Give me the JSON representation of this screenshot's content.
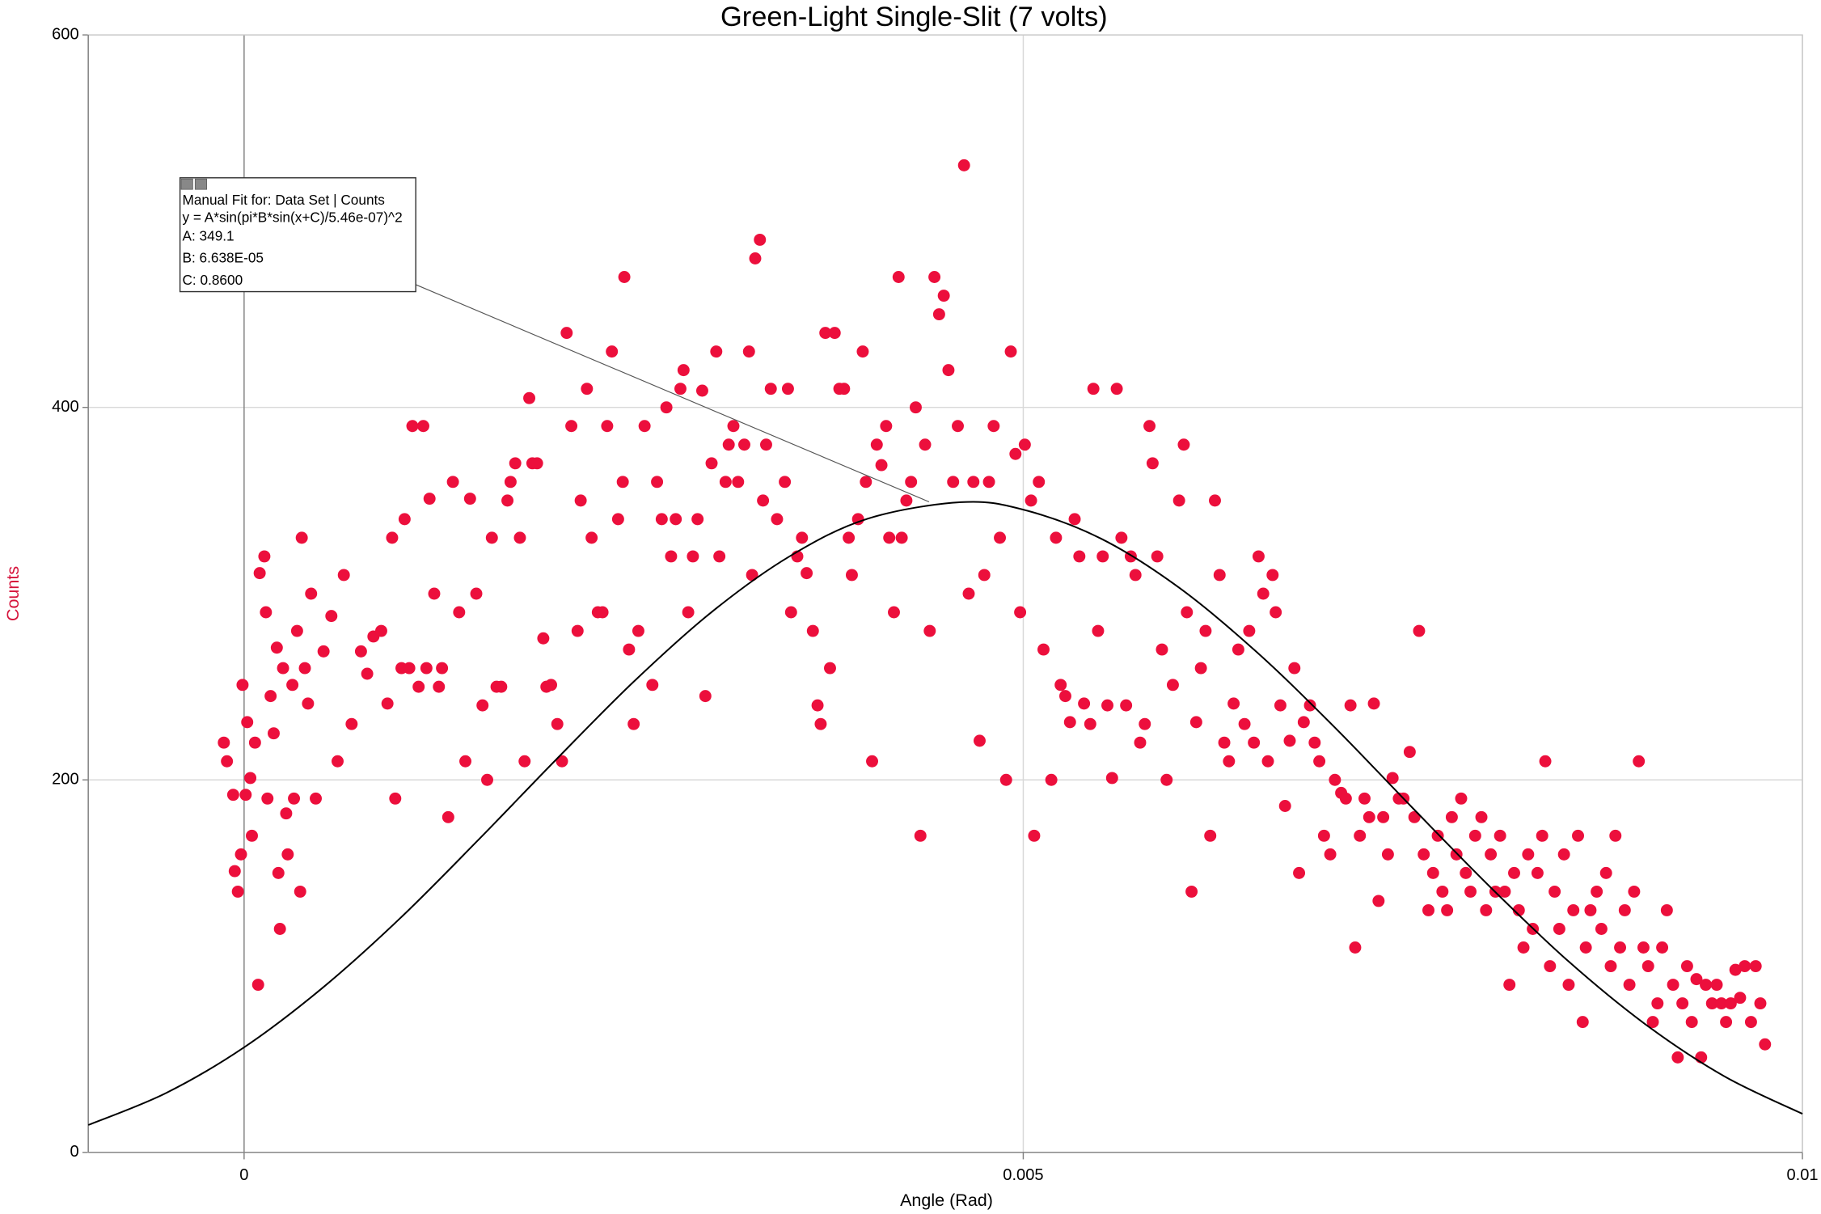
{
  "chart_data": {
    "type": "scatter",
    "title": "Green-Light Single-Slit (7 volts)",
    "x_label": "Angle (Rad)",
    "y_label": "Counts",
    "y_label_color": "#d6143c",
    "xlim": [
      -0.001,
      0.01
    ],
    "ylim": [
      0,
      600
    ],
    "xticks": [
      0,
      0.005,
      0.01
    ],
    "yticks": [
      0,
      200,
      400,
      600
    ],
    "grid": true,
    "series": [
      {
        "type": "scatter",
        "color": "#ec0f3c",
        "x": [
          -0.00013,
          -0.00011,
          -7e-05,
          -6e-05,
          -4e-05,
          -2e-05,
          -1e-05,
          1e-05,
          2e-05,
          4e-05,
          5e-05,
          7e-05,
          9e-05,
          0.0001,
          0.00013,
          0.00014,
          0.00015,
          0.00017,
          0.00019,
          0.00021,
          0.00022,
          0.00023,
          0.00025,
          0.00027,
          0.00028,
          0.00031,
          0.00032,
          0.00034,
          0.00036,
          0.00037,
          0.00039,
          0.00041,
          0.00043,
          0.00046,
          0.00051,
          0.00056,
          0.0006,
          0.00064,
          0.00069,
          0.00075,
          0.00079,
          0.00083,
          0.00088,
          0.00092,
          0.00095,
          0.00097,
          0.00101,
          0.00103,
          0.00106,
          0.00108,
          0.00112,
          0.00115,
          0.00117,
          0.00119,
          0.00122,
          0.00125,
          0.00127,
          0.00131,
          0.00134,
          0.00138,
          0.00142,
          0.00145,
          0.00149,
          0.00153,
          0.00156,
          0.00159,
          0.00162,
          0.00165,
          0.00169,
          0.00171,
          0.00174,
          0.00177,
          0.0018,
          0.00183,
          0.00185,
          0.00188,
          0.00192,
          0.00194,
          0.00197,
          0.00201,
          0.00204,
          0.00207,
          0.0021,
          0.00214,
          0.00216,
          0.0022,
          0.00223,
          0.00227,
          0.0023,
          0.00233,
          0.00236,
          0.0024,
          0.00243,
          0.00244,
          0.00247,
          0.0025,
          0.00253,
          0.00257,
          0.00262,
          0.00265,
          0.00268,
          0.00271,
          0.00274,
          0.00277,
          0.0028,
          0.00282,
          0.00285,
          0.00288,
          0.00291,
          0.00294,
          0.00296,
          0.003,
          0.00303,
          0.00305,
          0.00309,
          0.00311,
          0.00314,
          0.00317,
          0.00321,
          0.00324,
          0.00326,
          0.00328,
          0.00331,
          0.00333,
          0.00335,
          0.00338,
          0.00342,
          0.00347,
          0.00349,
          0.00351,
          0.00355,
          0.00358,
          0.00361,
          0.00365,
          0.00368,
          0.0037,
          0.00373,
          0.00376,
          0.00379,
          0.00382,
          0.00385,
          0.00388,
          0.0039,
          0.00394,
          0.00397,
          0.00399,
          0.00403,
          0.00406,
          0.00409,
          0.00412,
          0.00414,
          0.00417,
          0.0042,
          0.00422,
          0.00425,
          0.00428,
          0.00431,
          0.00434,
          0.00437,
          0.0044,
          0.00443,
          0.00446,
          0.00449,
          0.00452,
          0.00455,
          0.00458,
          0.00462,
          0.00465,
          0.00468,
          0.00472,
          0.00475,
          0.00478,
          0.00481,
          0.00485,
          0.00489,
          0.00492,
          0.00495,
          0.00498,
          0.00501,
          0.00505,
          0.00507,
          0.0051,
          0.00513,
          0.00518,
          0.00521,
          0.00524,
          0.00527,
          0.0053,
          0.00533,
          0.00536,
          0.00539,
          0.00543,
          0.00545,
          0.00548,
          0.00551,
          0.00554,
          0.00557,
          0.0056,
          0.00563,
          0.00566,
          0.00569,
          0.00572,
          0.00575,
          0.00578,
          0.00581,
          0.00583,
          0.00586,
          0.00589,
          0.00592,
          0.00596,
          0.006,
          0.00603,
          0.00605,
          0.00608,
          0.00611,
          0.00614,
          0.00617,
          0.0062,
          0.00623,
          0.00626,
          0.00629,
          0.00632,
          0.00635,
          0.00638,
          0.00642,
          0.00645,
          0.00648,
          0.00651,
          0.00654,
          0.00657,
          0.0066,
          0.00662,
          0.00665,
          0.00668,
          0.00671,
          0.00674,
          0.00677,
          0.0068,
          0.00684,
          0.00687,
          0.0069,
          0.00693,
          0.00697,
          0.007,
          0.00704,
          0.00707,
          0.0071,
          0.00713,
          0.00716,
          0.00719,
          0.00722,
          0.00725,
          0.00728,
          0.00731,
          0.00734,
          0.00737,
          0.00741,
          0.00744,
          0.00748,
          0.00751,
          0.00754,
          0.00757,
          0.0076,
          0.00763,
          0.00766,
          0.00769,
          0.00772,
          0.00775,
          0.00778,
          0.00781,
          0.00784,
          0.00787,
          0.0079,
          0.00794,
          0.00797,
          0.008,
          0.00803,
          0.00806,
          0.00809,
          0.00812,
          0.00815,
          0.00818,
          0.00821,
          0.00824,
          0.00827,
          0.0083,
          0.00833,
          0.00835,
          0.00838,
          0.00841,
          0.00844,
          0.00847,
          0.0085,
          0.00853,
          0.00856,
          0.00859,
          0.00861,
          0.00864,
          0.00868,
          0.00871,
          0.00874,
          0.00877,
          0.0088,
          0.00883,
          0.00886,
          0.00889,
          0.00892,
          0.00895,
          0.00898,
          0.00901,
          0.00904,
          0.00907,
          0.0091,
          0.00913,
          0.00917,
          0.0092,
          0.00923,
          0.00926,
          0.00929,
          0.00932,
          0.00935,
          0.00938,
          0.00942,
          0.00945,
          0.00948,
          0.00951,
          0.00954,
          0.00957,
          0.0096,
          0.00963,
          0.00967,
          0.0097,
          0.00973,
          0.00976
        ],
        "values": [
          220,
          210,
          192,
          151,
          140,
          160,
          251,
          192,
          231,
          201,
          170,
          220,
          90,
          311,
          320,
          290,
          190,
          245,
          225,
          271,
          150,
          120,
          260,
          182,
          160,
          251,
          190,
          280,
          140,
          330,
          260,
          241,
          300,
          190,
          269,
          288,
          210,
          310,
          230,
          269,
          257,
          277,
          280,
          241,
          330,
          190,
          260,
          340,
          260,
          390,
          250,
          390,
          260,
          351,
          300,
          250,
          260,
          180,
          360,
          290,
          210,
          351,
          300,
          240,
          200,
          330,
          250,
          250,
          350,
          360,
          370,
          330,
          210,
          405,
          370,
          370,
          276,
          250,
          251,
          230,
          210,
          440,
          390,
          280,
          350,
          410,
          330,
          290,
          290,
          390,
          430,
          340,
          360,
          470,
          270,
          230,
          280,
          390,
          251,
          360,
          340,
          400,
          320,
          340,
          410,
          420,
          290,
          320,
          340,
          409,
          245,
          370,
          430,
          320,
          360,
          380,
          390,
          360,
          380,
          430,
          310,
          480,
          490,
          350,
          380,
          410,
          340,
          360,
          410,
          290,
          320,
          330,
          311,
          280,
          240,
          230,
          440,
          260,
          440,
          410,
          410,
          330,
          310,
          340,
          430,
          360,
          210,
          380,
          369,
          390,
          330,
          290,
          470,
          330,
          350,
          360,
          400,
          170,
          380,
          280,
          470,
          450,
          460,
          420,
          360,
          390,
          530,
          300,
          360,
          221,
          310,
          360,
          390,
          330,
          200,
          430,
          375,
          290,
          380,
          350,
          170,
          360,
          270,
          200,
          330,
          251,
          245,
          231,
          340,
          320,
          241,
          230,
          410,
          280,
          320,
          240,
          201,
          410,
          330,
          240,
          320,
          310,
          220,
          230,
          390,
          370,
          320,
          270,
          200,
          251,
          350,
          380,
          290,
          140,
          231,
          260,
          280,
          170,
          350,
          310,
          220,
          210,
          241,
          270,
          230,
          280,
          220,
          320,
          300,
          210,
          310,
          290,
          240,
          186,
          221,
          260,
          150,
          231,
          240,
          220,
          210,
          170,
          160,
          200,
          193,
          190,
          240,
          110,
          170,
          190,
          180,
          241,
          135,
          180,
          160,
          201,
          190,
          190,
          215,
          180,
          280,
          160,
          130,
          150,
          170,
          140,
          130,
          180,
          160,
          190,
          150,
          140,
          170,
          180,
          130,
          160,
          140,
          170,
          140,
          90,
          150,
          130,
          110,
          160,
          120,
          150,
          170,
          210,
          100,
          140,
          120,
          160,
          90,
          130,
          170,
          70,
          110,
          130,
          140,
          120,
          150,
          100,
          170,
          110,
          130,
          90,
          140,
          210,
          110,
          100,
          70,
          80,
          110,
          130,
          90,
          51,
          80,
          100,
          70,
          93,
          51,
          90,
          80,
          90,
          80,
          70,
          80,
          98,
          83,
          100,
          70,
          100,
          80,
          58
        ]
      },
      {
        "type": "line",
        "color": "#000000",
        "x": [
          -0.001,
          -0.0005,
          0,
          0.0005,
          0.001,
          0.0015,
          0.002,
          0.0025,
          0.003,
          0.0035,
          0.004,
          0.0046,
          0.005,
          0.0055,
          0.006,
          0.0065,
          0.007,
          0.0075,
          0.008,
          0.0085,
          0.009,
          0.0095,
          0.01
        ],
        "values": [
          14.7,
          31.9,
          56.4,
          88.1,
          125.6,
          167.5,
          210.7,
          252.7,
          290.1,
          320.0,
          340.2,
          349.1,
          345.1,
          329.5,
          303.2,
          268.5,
          228.1,
          184.8,
          142.2,
          102.5,
          68.3,
          40.8,
          20.7
        ]
      }
    ],
    "annotation": {
      "title": "Manual Fit for: Data Set | Counts",
      "equation": "y = A*sin(pi*B*sin(x+C)/5.46e-07)^2",
      "params": [
        "A: 349.1",
        "B: 6.638E-05",
        "C: 0.8600"
      ]
    }
  }
}
